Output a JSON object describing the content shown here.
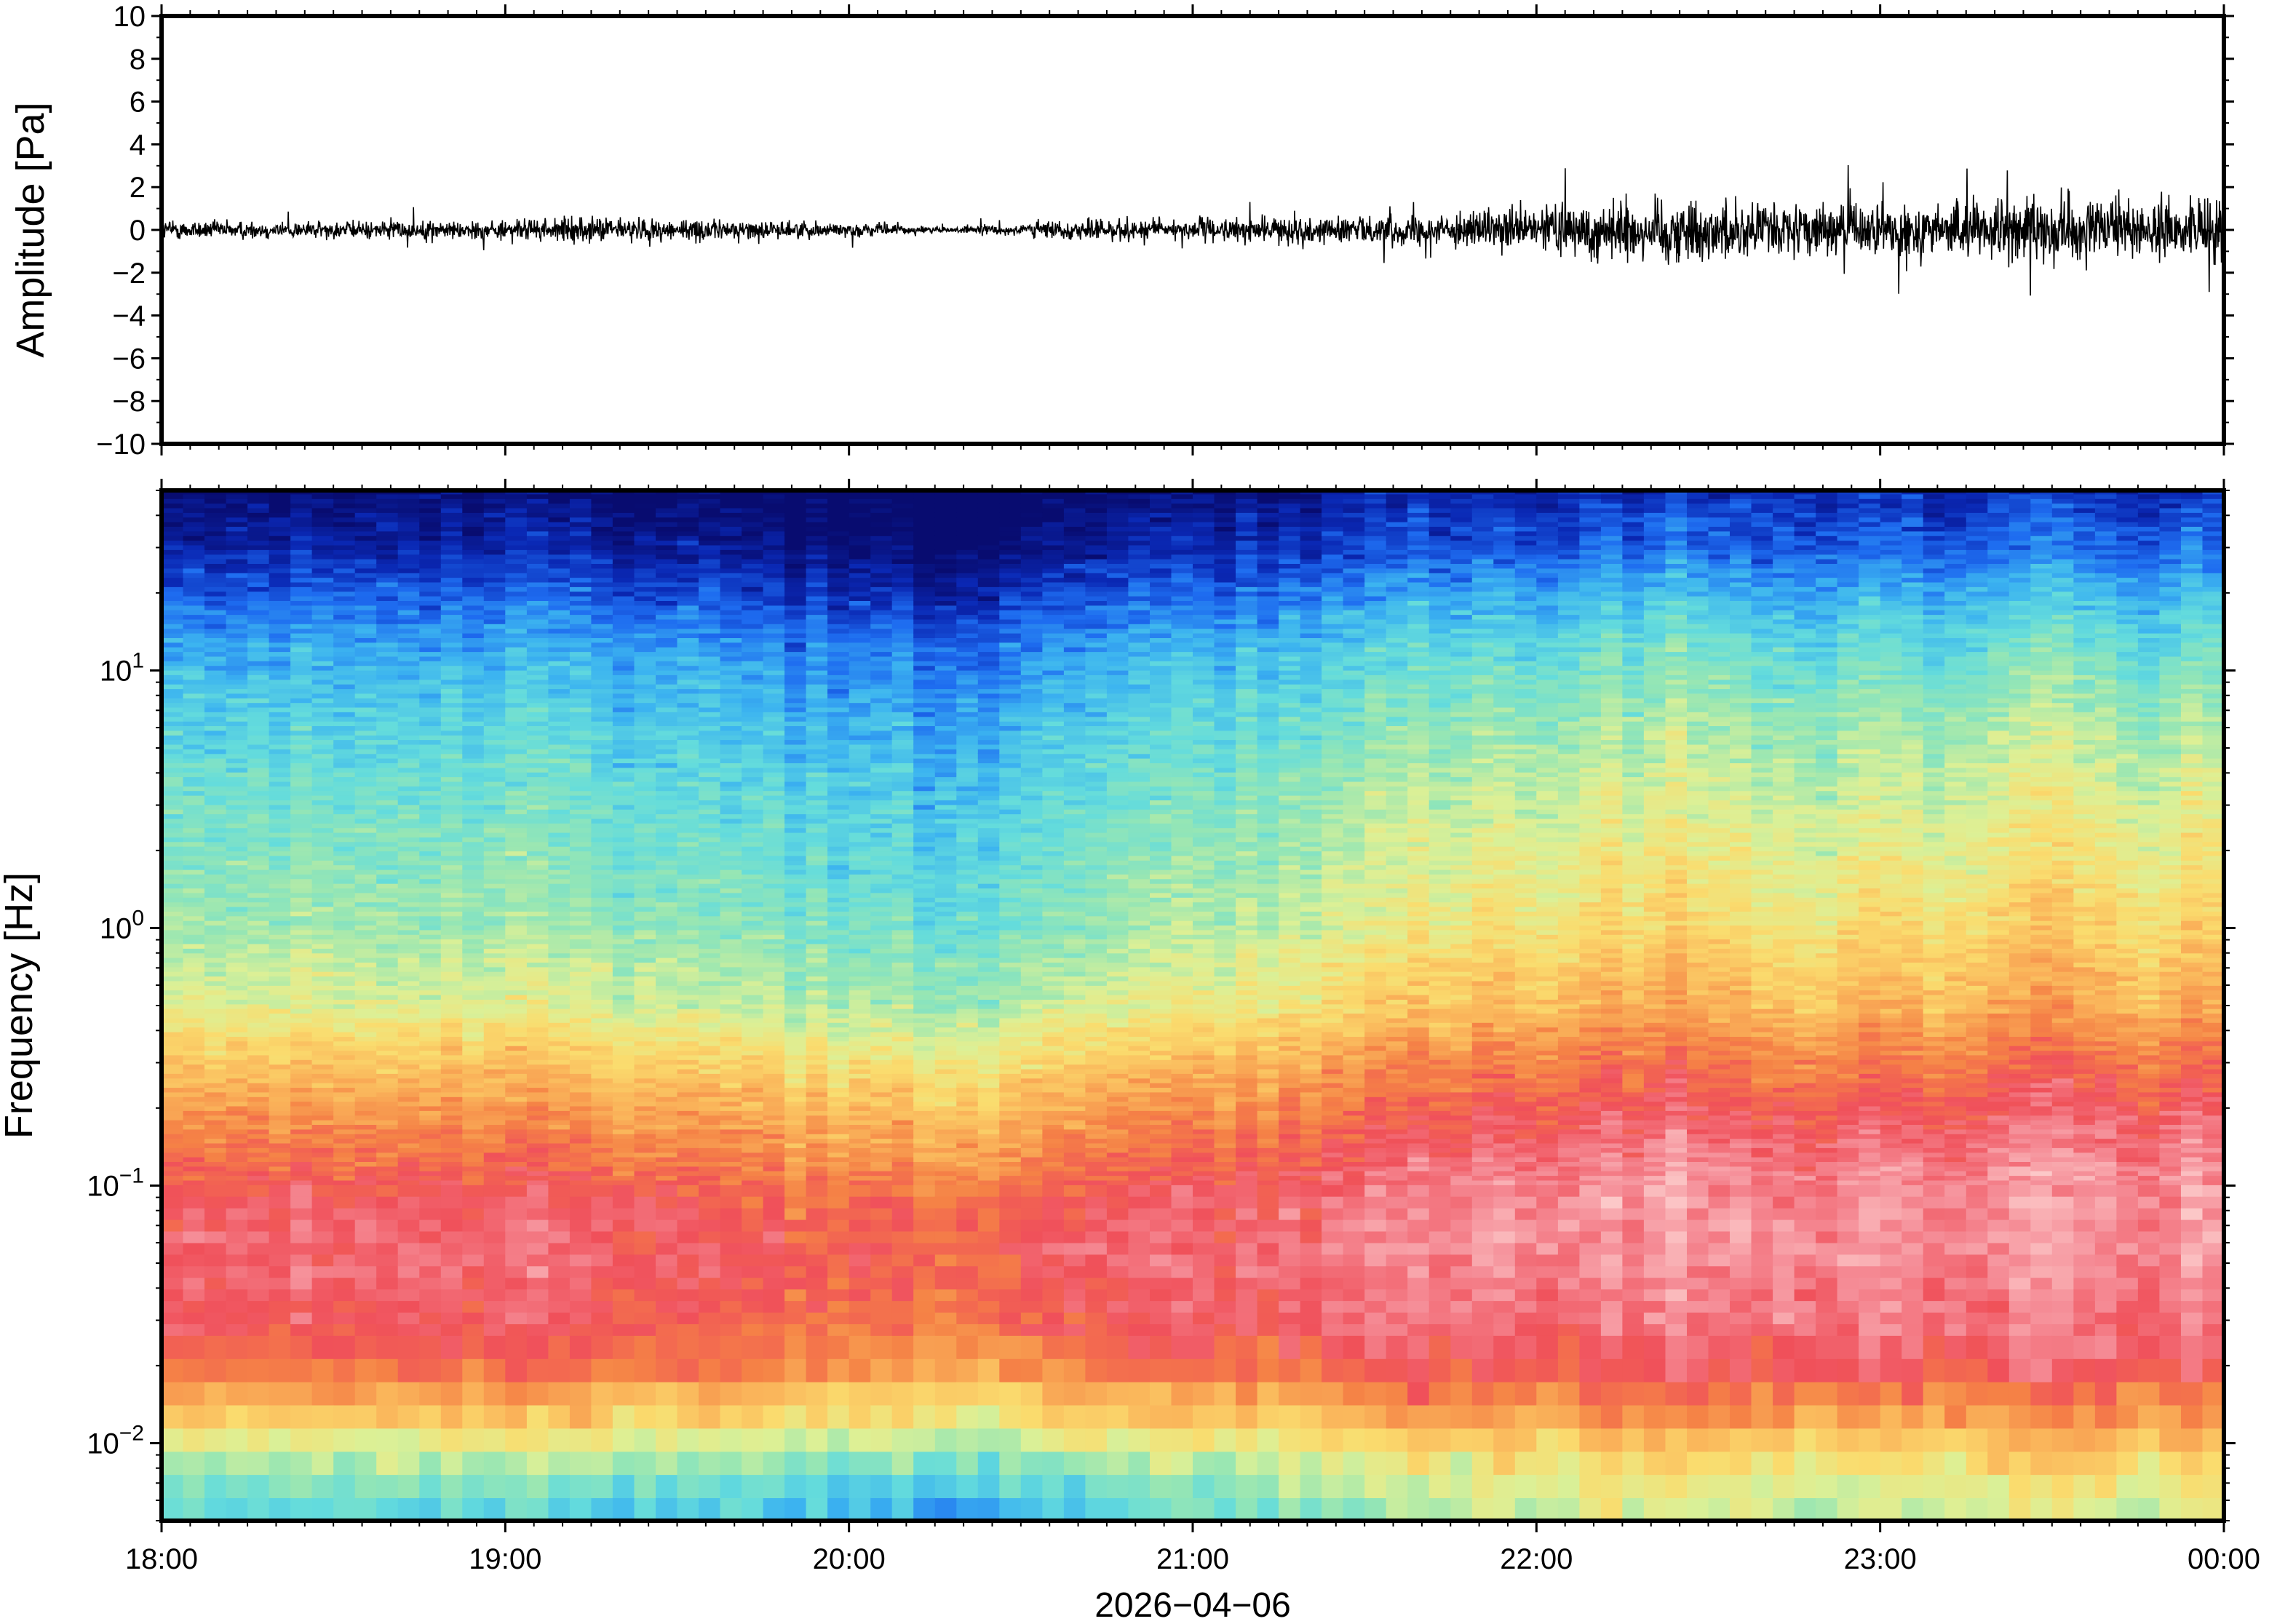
{
  "chart_data": [
    {
      "type": "line",
      "panel": "waveform",
      "ylabel": "Amplitude [Pa]",
      "ylim": [
        -10,
        10
      ],
      "yticks": [
        10,
        8,
        6,
        4,
        2,
        0,
        -2,
        -4,
        -6,
        -8,
        -10
      ],
      "ytick_labels": [
        "10",
        "8",
        "6",
        "4",
        "2",
        "0",
        "−2",
        "−4",
        "−6",
        "−8",
        "−10"
      ],
      "xlim_hours": [
        18,
        24
      ],
      "envelope": {
        "time_hours": [
          18.0,
          18.5,
          19.0,
          19.25,
          19.5,
          20.0,
          20.3,
          20.5,
          20.75,
          21.0,
          21.25,
          21.5,
          21.75,
          21.9,
          22.0,
          22.25,
          22.5,
          22.75,
          23.0,
          23.25,
          23.5,
          23.75,
          24.0
        ],
        "half_width_pa": [
          0.7,
          0.6,
          0.7,
          0.9,
          0.8,
          0.5,
          0.2,
          0.5,
          0.8,
          0.8,
          0.9,
          1.0,
          1.1,
          1.4,
          1.6,
          2.4,
          2.2,
          1.8,
          1.8,
          2.0,
          2.4,
          2.0,
          1.9
        ]
      },
      "grid": false
    },
    {
      "type": "heatmap",
      "panel": "spectrogram",
      "ylabel": "Frequency [Hz]",
      "yscale": "log",
      "ylim": [
        0.005,
        50
      ],
      "yticks": [
        0.01,
        0.1,
        1,
        10
      ],
      "ytick_labels": [
        "10−2",
        "10−1",
        "10⁰",
        "10¹"
      ],
      "ytick_exponents": [
        "−2",
        "−1",
        "0",
        "1"
      ],
      "colormap": [
        "#080c70",
        "#0a28b4",
        "#1e6cf0",
        "#3cb4f0",
        "#64dcdc",
        "#96e6b4",
        "#dcf096",
        "#fadc6e",
        "#fab45a",
        "#f58246",
        "#f0505a",
        "#f58c96",
        "#fcc8c8"
      ],
      "profile": {
        "freq_hz": [
          0.005,
          0.008,
          0.012,
          0.02,
          0.03,
          0.05,
          0.08,
          0.12,
          0.2,
          0.3,
          0.5,
          1,
          2,
          5,
          10,
          20,
          30,
          50
        ],
        "early_level": [
          0.3,
          0.42,
          0.6,
          0.78,
          0.84,
          0.86,
          0.85,
          0.78,
          0.7,
          0.62,
          0.5,
          0.42,
          0.38,
          0.32,
          0.26,
          0.14,
          0.06,
          0.0
        ],
        "late_level": [
          0.52,
          0.6,
          0.72,
          0.86,
          0.9,
          0.93,
          0.95,
          0.93,
          0.86,
          0.8,
          0.7,
          0.62,
          0.56,
          0.48,
          0.4,
          0.28,
          0.18,
          0.1
        ]
      },
      "activity": {
        "time_hours": [
          18.0,
          18.5,
          19.0,
          19.5,
          20.0,
          20.3,
          20.5,
          21.0,
          21.5,
          22.0,
          22.5,
          22.75,
          23.0,
          23.5,
          24.0
        ],
        "value": [
          0.05,
          0.05,
          0.0,
          0.0,
          -0.15,
          -0.28,
          -0.1,
          0.2,
          0.45,
          0.8,
          0.85,
          0.6,
          0.8,
          0.95,
          0.9
        ]
      },
      "grid": false
    }
  ],
  "xaxis": {
    "tick_labels": [
      "18:00",
      "19:00",
      "20:00",
      "21:00",
      "22:00",
      "23:00",
      "00:00"
    ],
    "date_label": "2026−04−06"
  }
}
